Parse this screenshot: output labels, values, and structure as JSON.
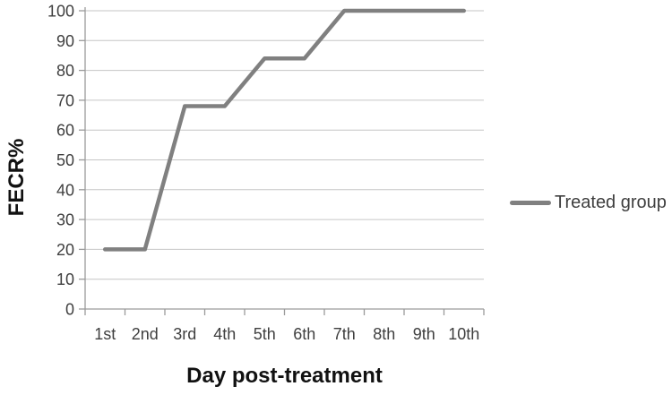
{
  "chart_data": {
    "type": "line",
    "title": "",
    "categories": [
      "1st",
      "2nd",
      "3rd",
      "4th",
      "5th",
      "6th",
      "7th",
      "8th",
      "9th",
      "10th"
    ],
    "series": [
      {
        "name": "Treated group",
        "values": [
          20,
          20,
          68,
          68,
          84,
          84,
          100,
          100,
          100,
          100
        ],
        "color": "#808080",
        "line_width": 4.5
      }
    ],
    "xlabel": "Day post-treatment",
    "ylabel": "FECR%",
    "ylim": [
      0,
      100
    ],
    "yticks": [
      0,
      10,
      20,
      30,
      40,
      50,
      60,
      70,
      80,
      90,
      100
    ],
    "grid": "horizontal",
    "legend_position": "right-middle",
    "colors": {
      "background": "#ffffff",
      "gridline": "#c6c6c6",
      "axis": "#9a9a9a",
      "tick_label": "#3f3f3f",
      "axis_title": "#111111",
      "legend_text": "#3f3f3f"
    }
  }
}
